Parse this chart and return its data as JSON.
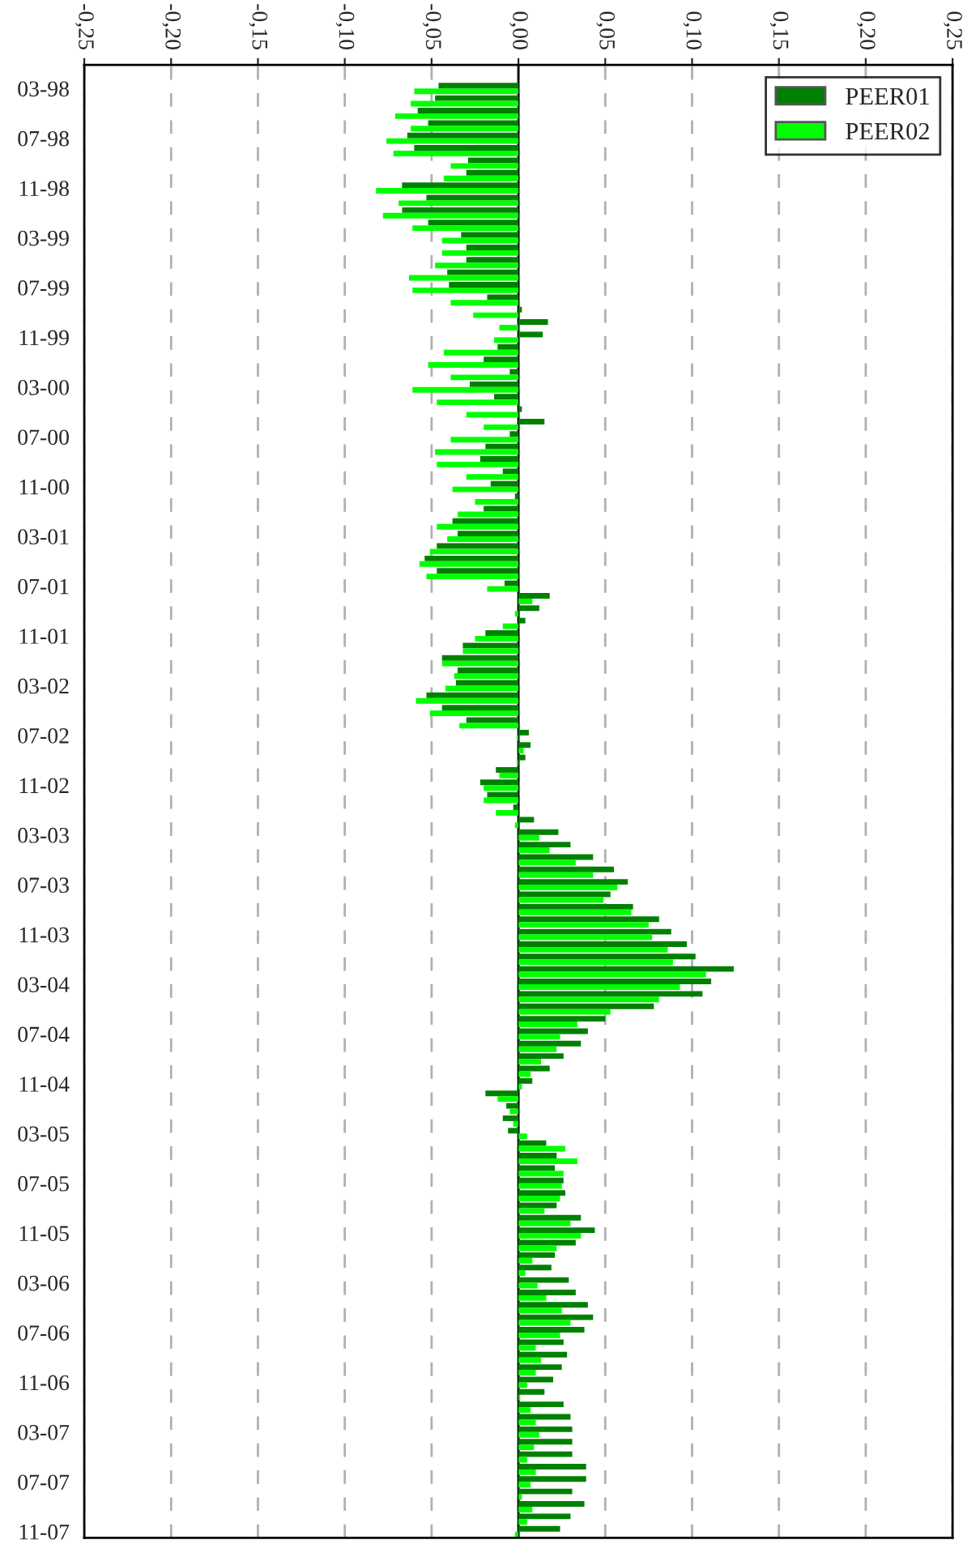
{
  "chart_data": {
    "type": "bar",
    "orientation": "horizontal",
    "categories": [
      "03-98",
      null,
      null,
      null,
      "07-98",
      null,
      null,
      null,
      "11-98",
      null,
      null,
      null,
      "03-99",
      null,
      null,
      null,
      "07-99",
      null,
      null,
      null,
      "11-99",
      null,
      null,
      null,
      "03-00",
      null,
      null,
      null,
      "07-00",
      null,
      null,
      null,
      "11-00",
      null,
      null,
      null,
      "03-01",
      null,
      null,
      null,
      "07-01",
      null,
      null,
      null,
      "11-01",
      null,
      null,
      null,
      "03-02",
      null,
      null,
      null,
      "07-02",
      null,
      null,
      null,
      "11-02",
      null,
      null,
      null,
      "03-03",
      null,
      null,
      null,
      "07-03",
      null,
      null,
      null,
      "11-03",
      null,
      null,
      null,
      "03-04",
      null,
      null,
      null,
      "07-04",
      null,
      null,
      null,
      "11-04",
      null,
      null,
      null,
      "03-05",
      null,
      null,
      null,
      "07-05",
      null,
      null,
      null,
      "11-05",
      null,
      null,
      null,
      "03-06",
      null,
      null,
      null,
      "07-06",
      null,
      null,
      null,
      "11-06",
      null,
      null,
      null,
      "03-07",
      null,
      null,
      null,
      "07-07",
      null,
      null,
      null,
      "11-07"
    ],
    "series": [
      {
        "name": "PEER01",
        "color": "#008000",
        "values": [
          -0.046,
          -0.048,
          -0.058,
          -0.052,
          -0.064,
          -0.06,
          -0.029,
          -0.03,
          -0.067,
          -0.053,
          -0.067,
          -0.052,
          -0.033,
          -0.03,
          -0.03,
          -0.041,
          -0.04,
          -0.018,
          0.002,
          0.017,
          0.014,
          -0.012,
          -0.02,
          -0.005,
          -0.028,
          -0.014,
          0.002,
          0.015,
          -0.005,
          -0.019,
          -0.022,
          -0.009,
          -0.016,
          -0.002,
          -0.02,
          -0.038,
          -0.035,
          -0.047,
          -0.054,
          -0.047,
          -0.008,
          0.018,
          0.012,
          0.004,
          -0.019,
          -0.032,
          -0.044,
          -0.035,
          -0.036,
          -0.053,
          -0.044,
          -0.03,
          0.006,
          0.007,
          0.004,
          -0.013,
          -0.022,
          -0.018,
          -0.003,
          0.009,
          0.023,
          0.03,
          0.043,
          0.055,
          0.063,
          0.053,
          0.066,
          0.081,
          0.088,
          0.097,
          0.102,
          0.124,
          0.111,
          0.106,
          0.078,
          0.05,
          0.04,
          0.036,
          0.026,
          0.018,
          0.008,
          -0.019,
          -0.007,
          -0.009,
          -0.006,
          0.016,
          0.022,
          0.021,
          0.026,
          0.027,
          0.022,
          0.036,
          0.044,
          0.033,
          0.021,
          0.019,
          0.029,
          0.033,
          0.04,
          0.043,
          0.038,
          0.026,
          0.028,
          0.025,
          0.02,
          0.015,
          0.026,
          0.03,
          0.031,
          0.031,
          0.031,
          0.039,
          0.039,
          0.031,
          0.038,
          0.03,
          0.024
        ]
      },
      {
        "name": "PEER02",
        "color": "#00ff00",
        "values": [
          -0.06,
          -0.062,
          -0.071,
          -0.062,
          -0.076,
          -0.072,
          -0.039,
          -0.043,
          -0.082,
          -0.069,
          -0.078,
          -0.061,
          -0.044,
          -0.044,
          -0.048,
          -0.063,
          -0.061,
          -0.039,
          -0.026,
          -0.011,
          -0.014,
          -0.043,
          -0.052,
          -0.039,
          -0.061,
          -0.047,
          -0.03,
          -0.02,
          -0.039,
          -0.048,
          -0.047,
          -0.03,
          -0.038,
          -0.025,
          -0.035,
          -0.047,
          -0.041,
          -0.051,
          -0.057,
          -0.053,
          -0.018,
          0.008,
          -0.002,
          -0.009,
          -0.025,
          -0.032,
          -0.044,
          -0.037,
          -0.042,
          -0.059,
          -0.051,
          -0.034,
          -0.001,
          0.003,
          -0.001,
          -0.011,
          -0.02,
          -0.02,
          -0.013,
          -0.002,
          0.012,
          0.018,
          0.033,
          0.043,
          0.057,
          0.049,
          0.065,
          0.075,
          0.077,
          0.086,
          0.089,
          0.108,
          0.093,
          0.081,
          0.053,
          0.034,
          0.024,
          0.022,
          0.013,
          0.007,
          0.002,
          -0.012,
          -0.005,
          -0.003,
          0.005,
          0.027,
          0.034,
          0.026,
          0.025,
          0.024,
          0.015,
          0.03,
          0.036,
          0.022,
          0.008,
          0.004,
          0.011,
          0.016,
          0.025,
          0.03,
          0.024,
          0.01,
          0.013,
          0.01,
          0.005,
          0.001,
          0.007,
          0.01,
          0.012,
          0.009,
          0.005,
          0.01,
          0.007,
          0.002,
          0.008,
          0.005,
          -0.002
        ]
      }
    ],
    "xlim": [
      -0.25,
      0.25
    ],
    "xticks": [
      {
        "value": -0.25,
        "label": "-0,25"
      },
      {
        "value": -0.2,
        "label": "-0,20"
      },
      {
        "value": -0.15,
        "label": "-0,15"
      },
      {
        "value": -0.1,
        "label": "-0,10"
      },
      {
        "value": -0.05,
        "label": "-0,05"
      },
      {
        "value": 0,
        "label": "0,00"
      },
      {
        "value": 0.05,
        "label": "0,05"
      },
      {
        "value": 0.1,
        "label": "0,10"
      },
      {
        "value": 0.15,
        "label": "0,15"
      },
      {
        "value": 0.2,
        "label": "0,20"
      },
      {
        "value": 0.25,
        "label": "0,25"
      }
    ],
    "ref_lines": [
      {
        "axis": "x",
        "value": 0,
        "color": "#000000"
      }
    ],
    "grid": "x",
    "legend": "top right"
  }
}
